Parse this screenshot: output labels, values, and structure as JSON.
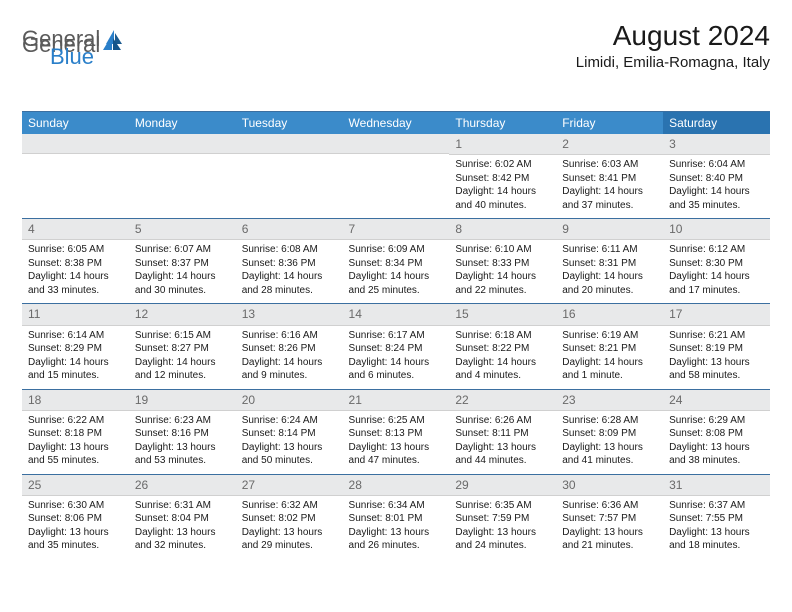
{
  "logo": {
    "part1": "General",
    "part2": "Blue"
  },
  "title": "August 2024",
  "location": "Limidi, Emilia-Romagna, Italy",
  "day_headers": [
    "Sunday",
    "Monday",
    "Tuesday",
    "Wednesday",
    "Thursday",
    "Friday",
    "Saturday"
  ],
  "colors": {
    "header_bg": "#3b8bca",
    "header_bg_last": "#2a73b0",
    "daynum_bg": "#e8e9ea",
    "border": "#3b6fa0",
    "logo_gray": "#5a5a5a",
    "logo_blue": "#2a7fc9"
  },
  "typography": {
    "title_fontsize": 28,
    "location_fontsize": 15,
    "header_fontsize": 12,
    "daynum_fontsize": 12,
    "detail_fontsize": 10
  },
  "weeks": [
    [
      null,
      null,
      null,
      null,
      {
        "n": "1",
        "sr": "6:02 AM",
        "ss": "8:42 PM",
        "d1": "14 hours",
        "d2": "and 40 minutes."
      },
      {
        "n": "2",
        "sr": "6:03 AM",
        "ss": "8:41 PM",
        "d1": "14 hours",
        "d2": "and 37 minutes."
      },
      {
        "n": "3",
        "sr": "6:04 AM",
        "ss": "8:40 PM",
        "d1": "14 hours",
        "d2": "and 35 minutes."
      }
    ],
    [
      {
        "n": "4",
        "sr": "6:05 AM",
        "ss": "8:38 PM",
        "d1": "14 hours",
        "d2": "and 33 minutes."
      },
      {
        "n": "5",
        "sr": "6:07 AM",
        "ss": "8:37 PM",
        "d1": "14 hours",
        "d2": "and 30 minutes."
      },
      {
        "n": "6",
        "sr": "6:08 AM",
        "ss": "8:36 PM",
        "d1": "14 hours",
        "d2": "and 28 minutes."
      },
      {
        "n": "7",
        "sr": "6:09 AM",
        "ss": "8:34 PM",
        "d1": "14 hours",
        "d2": "and 25 minutes."
      },
      {
        "n": "8",
        "sr": "6:10 AM",
        "ss": "8:33 PM",
        "d1": "14 hours",
        "d2": "and 22 minutes."
      },
      {
        "n": "9",
        "sr": "6:11 AM",
        "ss": "8:31 PM",
        "d1": "14 hours",
        "d2": "and 20 minutes."
      },
      {
        "n": "10",
        "sr": "6:12 AM",
        "ss": "8:30 PM",
        "d1": "14 hours",
        "d2": "and 17 minutes."
      }
    ],
    [
      {
        "n": "11",
        "sr": "6:14 AM",
        "ss": "8:29 PM",
        "d1": "14 hours",
        "d2": "and 15 minutes."
      },
      {
        "n": "12",
        "sr": "6:15 AM",
        "ss": "8:27 PM",
        "d1": "14 hours",
        "d2": "and 12 minutes."
      },
      {
        "n": "13",
        "sr": "6:16 AM",
        "ss": "8:26 PM",
        "d1": "14 hours",
        "d2": "and 9 minutes."
      },
      {
        "n": "14",
        "sr": "6:17 AM",
        "ss": "8:24 PM",
        "d1": "14 hours",
        "d2": "and 6 minutes."
      },
      {
        "n": "15",
        "sr": "6:18 AM",
        "ss": "8:22 PM",
        "d1": "14 hours",
        "d2": "and 4 minutes."
      },
      {
        "n": "16",
        "sr": "6:19 AM",
        "ss": "8:21 PM",
        "d1": "14 hours",
        "d2": "and 1 minute."
      },
      {
        "n": "17",
        "sr": "6:21 AM",
        "ss": "8:19 PM",
        "d1": "13 hours",
        "d2": "and 58 minutes."
      }
    ],
    [
      {
        "n": "18",
        "sr": "6:22 AM",
        "ss": "8:18 PM",
        "d1": "13 hours",
        "d2": "and 55 minutes."
      },
      {
        "n": "19",
        "sr": "6:23 AM",
        "ss": "8:16 PM",
        "d1": "13 hours",
        "d2": "and 53 minutes."
      },
      {
        "n": "20",
        "sr": "6:24 AM",
        "ss": "8:14 PM",
        "d1": "13 hours",
        "d2": "and 50 minutes."
      },
      {
        "n": "21",
        "sr": "6:25 AM",
        "ss": "8:13 PM",
        "d1": "13 hours",
        "d2": "and 47 minutes."
      },
      {
        "n": "22",
        "sr": "6:26 AM",
        "ss": "8:11 PM",
        "d1": "13 hours",
        "d2": "and 44 minutes."
      },
      {
        "n": "23",
        "sr": "6:28 AM",
        "ss": "8:09 PM",
        "d1": "13 hours",
        "d2": "and 41 minutes."
      },
      {
        "n": "24",
        "sr": "6:29 AM",
        "ss": "8:08 PM",
        "d1": "13 hours",
        "d2": "and 38 minutes."
      }
    ],
    [
      {
        "n": "25",
        "sr": "6:30 AM",
        "ss": "8:06 PM",
        "d1": "13 hours",
        "d2": "and 35 minutes."
      },
      {
        "n": "26",
        "sr": "6:31 AM",
        "ss": "8:04 PM",
        "d1": "13 hours",
        "d2": "and 32 minutes."
      },
      {
        "n": "27",
        "sr": "6:32 AM",
        "ss": "8:02 PM",
        "d1": "13 hours",
        "d2": "and 29 minutes."
      },
      {
        "n": "28",
        "sr": "6:34 AM",
        "ss": "8:01 PM",
        "d1": "13 hours",
        "d2": "and 26 minutes."
      },
      {
        "n": "29",
        "sr": "6:35 AM",
        "ss": "7:59 PM",
        "d1": "13 hours",
        "d2": "and 24 minutes."
      },
      {
        "n": "30",
        "sr": "6:36 AM",
        "ss": "7:57 PM",
        "d1": "13 hours",
        "d2": "and 21 minutes."
      },
      {
        "n": "31",
        "sr": "6:37 AM",
        "ss": "7:55 PM",
        "d1": "13 hours",
        "d2": "and 18 minutes."
      }
    ]
  ]
}
